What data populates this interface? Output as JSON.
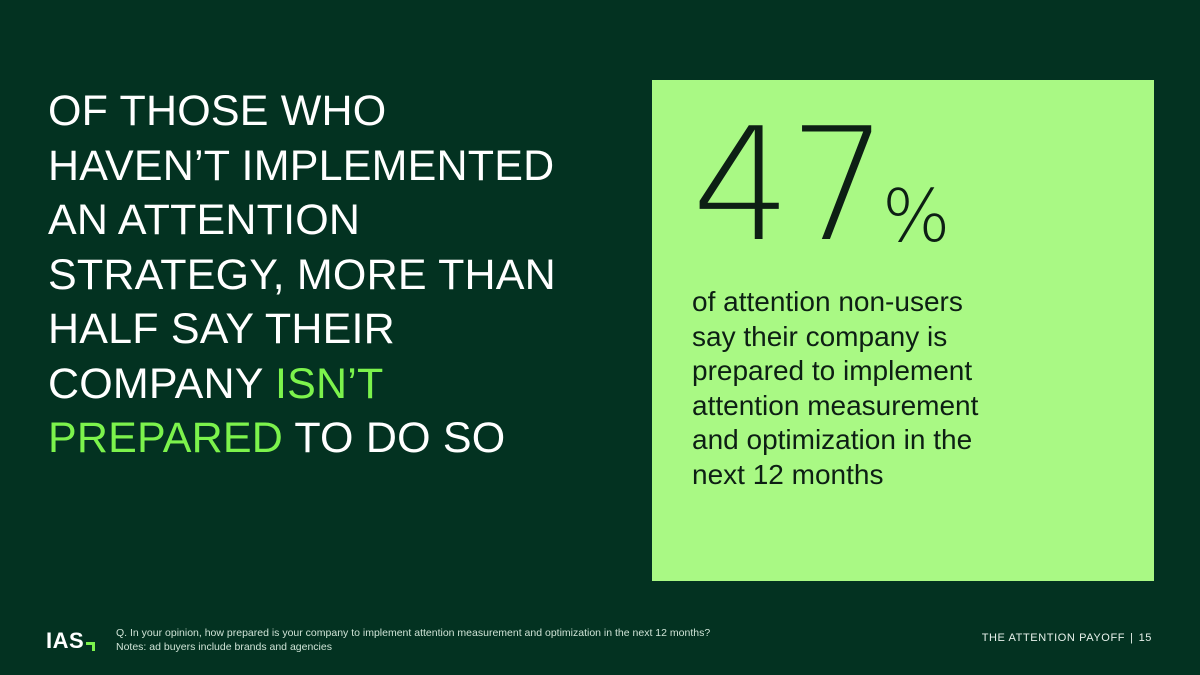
{
  "headline": {
    "line1": "OF THOSE WHO",
    "line2": "HAVEN’T IMPLEMENTED",
    "line3": "AN ATTENTION",
    "line4": "STRATEGY, MORE THAN",
    "line5": "HALF SAY THEIR",
    "line6_pre": "COMPANY ",
    "line6_accent": "ISN’T",
    "line7_accent": "PREPARED",
    "line7_post": " TO DO SO"
  },
  "stat": {
    "value": "47",
    "unit": "%",
    "description_lines": [
      "of attention non-users",
      "say their company is",
      "prepared to implement",
      "attention measurement",
      "and optimization in the",
      "next 12 months"
    ]
  },
  "footer": {
    "logo": "IAS",
    "question": "Q. In your opinion, how prepared is your company to implement attention measurement and optimization in the next 12 months?",
    "notes": "Notes: ad buyers include brands and agencies",
    "report_title": "THE ATTENTION PAYOFF",
    "separator": "|",
    "page_number": "15"
  },
  "colors": {
    "background": "#033221",
    "accent": "#7cf34c",
    "card": "#a9f984",
    "text_dark": "#0d1f14"
  }
}
